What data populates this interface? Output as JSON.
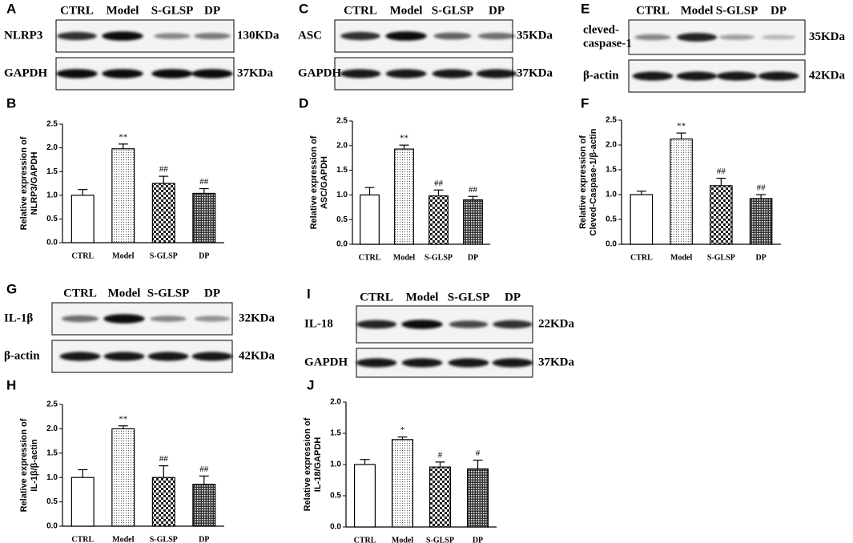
{
  "chart_data": [
    {
      "type": "bar",
      "panel": "B",
      "ylabel": [
        "Relative expression of",
        "NLRP3/GAPDH"
      ],
      "categories": [
        "CTRL",
        "Model",
        "S-GLSP",
        "DP"
      ],
      "values": [
        1.0,
        1.98,
        1.25,
        1.04
      ],
      "errors": [
        0.12,
        0.1,
        0.15,
        0.1
      ],
      "annotations": [
        null,
        "**",
        "##",
        "##"
      ],
      "bar_patterns": [
        "none",
        "dots",
        "checker",
        "crosshatch"
      ],
      "ylim": [
        0,
        2.5
      ],
      "yticks": [
        {
          "value": 0,
          "label": "0.0"
        },
        0.5,
        {
          "value": 1,
          "label": "1.0"
        },
        1.5,
        {
          "value": 2,
          "label": "2.0"
        },
        2.5
      ]
    },
    {
      "type": "bar",
      "panel": "D",
      "ylabel": [
        "Relative expression of",
        "ASC/GAPDH"
      ],
      "categories": [
        "CTRL",
        "Model",
        "S-GLSP",
        "DP"
      ],
      "values": [
        1.0,
        1.93,
        0.98,
        0.9
      ],
      "errors": [
        0.15,
        0.08,
        0.12,
        0.07
      ],
      "annotations": [
        null,
        "**",
        "##",
        "##"
      ],
      "bar_patterns": [
        "none",
        "dots",
        "checker",
        "crosshatch"
      ],
      "ylim": [
        0,
        2.5
      ],
      "yticks": [
        {
          "value": 0,
          "label": "0.0"
        },
        0.5,
        {
          "value": 1,
          "label": "1.0"
        },
        1.5,
        {
          "value": 2,
          "label": "2.0"
        },
        2.5
      ]
    },
    {
      "type": "bar",
      "panel": "F",
      "ylabel": [
        "Relative expression of",
        "Cleved-Caspase-1/β-actin"
      ],
      "categories": [
        "CTRL",
        "Model",
        "S-GLSP",
        "DP"
      ],
      "values": [
        1.0,
        2.12,
        1.18,
        0.92
      ],
      "errors": [
        0.07,
        0.12,
        0.15,
        0.08
      ],
      "annotations": [
        null,
        "**",
        "##",
        "##"
      ],
      "bar_patterns": [
        "none",
        "dots",
        "checker",
        "crosshatch"
      ],
      "ylim": [
        0,
        2.5
      ],
      "yticks": [
        {
          "value": 0,
          "label": "0.0"
        },
        0.5,
        {
          "value": 1,
          "label": "1.0"
        },
        1.5,
        {
          "value": 2,
          "label": "2.0"
        },
        2.5
      ]
    },
    {
      "type": "bar",
      "panel": "H",
      "ylabel": [
        "Relative expression of",
        "IL-1β/β-actin"
      ],
      "categories": [
        "CTRL",
        "Model",
        "S-GLSP",
        "DP"
      ],
      "values": [
        1.0,
        2.0,
        1.0,
        0.86
      ],
      "errors": [
        0.16,
        0.06,
        0.24,
        0.17
      ],
      "annotations": [
        null,
        "**",
        "##",
        "##"
      ],
      "bar_patterns": [
        "none",
        "dots",
        "checker",
        "crosshatch"
      ],
      "ylim": [
        0,
        2.5
      ],
      "yticks": [
        {
          "value": 0,
          "label": "0.0"
        },
        0.5,
        {
          "value": 1,
          "label": "1.0"
        },
        1.5,
        {
          "value": 2,
          "label": "2.0"
        },
        2.5
      ]
    },
    {
      "type": "bar",
      "panel": "J",
      "ylabel": [
        "Relative expression of",
        "IL-18/GAPDH"
      ],
      "categories": [
        "CTRL",
        "Model",
        "S-GLSP",
        "DP"
      ],
      "values": [
        1.0,
        1.4,
        0.96,
        0.93
      ],
      "errors": [
        0.08,
        0.04,
        0.08,
        0.14
      ],
      "annotations": [
        null,
        "*",
        "#",
        "#"
      ],
      "bar_patterns": [
        "none",
        "dots",
        "checker",
        "crosshatch"
      ],
      "ylim": [
        0,
        2
      ],
      "yticks": [
        {
          "value": 0,
          "label": "0.0"
        },
        0.5,
        {
          "value": 1,
          "label": "1.0"
        },
        1.5,
        {
          "value": 2,
          "label": "2.0"
        }
      ]
    }
  ],
  "blots": [
    {
      "panel": "A",
      "lanes": [
        "CTRL",
        "Model",
        "S-GLSP",
        "DP"
      ],
      "rows": [
        {
          "label": [
            "NLRP3"
          ],
          "size": "130KDa",
          "intensities": [
            0.8,
            0.95,
            0.45,
            0.5
          ]
        },
        {
          "label": [
            "GAPDH"
          ],
          "size": "37KDa",
          "intensities": [
            0.95,
            0.95,
            0.95,
            0.95
          ]
        }
      ]
    },
    {
      "panel": "C",
      "lanes": [
        "CTRL",
        "Model",
        "S-GLSP",
        "DP"
      ],
      "rows": [
        {
          "label": [
            "ASC"
          ],
          "size": "35KDa",
          "intensities": [
            0.8,
            0.95,
            0.6,
            0.55
          ]
        },
        {
          "label": [
            "GAPDH"
          ],
          "size": "37KDa",
          "intensities": [
            0.9,
            0.9,
            0.9,
            0.9
          ]
        }
      ]
    },
    {
      "panel": "E",
      "lanes": [
        "CTRL",
        "Model",
        "S-GLSP",
        "DP"
      ],
      "rows": [
        {
          "label": [
            "cleved-",
            "caspase-1"
          ],
          "size": "35KDa",
          "intensities": [
            0.45,
            0.85,
            0.35,
            0.25
          ]
        },
        {
          "label": [
            "β-actin"
          ],
          "size": "42KDa",
          "intensities": [
            0.9,
            0.9,
            0.9,
            0.9
          ]
        }
      ]
    },
    {
      "panel": "G",
      "lanes": [
        "CTRL",
        "Model",
        "S-GLSP",
        "DP"
      ],
      "rows": [
        {
          "label": [
            "IL-1β"
          ],
          "size": "32KDa",
          "intensities": [
            0.55,
            0.95,
            0.45,
            0.4
          ]
        },
        {
          "label": [
            "β-actin"
          ],
          "size": "42KDa",
          "intensities": [
            0.9,
            0.9,
            0.9,
            0.9
          ]
        }
      ]
    },
    {
      "panel": "I",
      "lanes": [
        "CTRL",
        "Model",
        "S-GLSP",
        "DP"
      ],
      "rows": [
        {
          "label": [
            "IL-18"
          ],
          "size": "22KDa",
          "intensities": [
            0.85,
            0.95,
            0.7,
            0.8
          ]
        },
        {
          "label": [
            "GAPDH"
          ],
          "size": "37KDa",
          "intensities": [
            0.9,
            0.9,
            0.9,
            0.9
          ]
        }
      ]
    }
  ]
}
